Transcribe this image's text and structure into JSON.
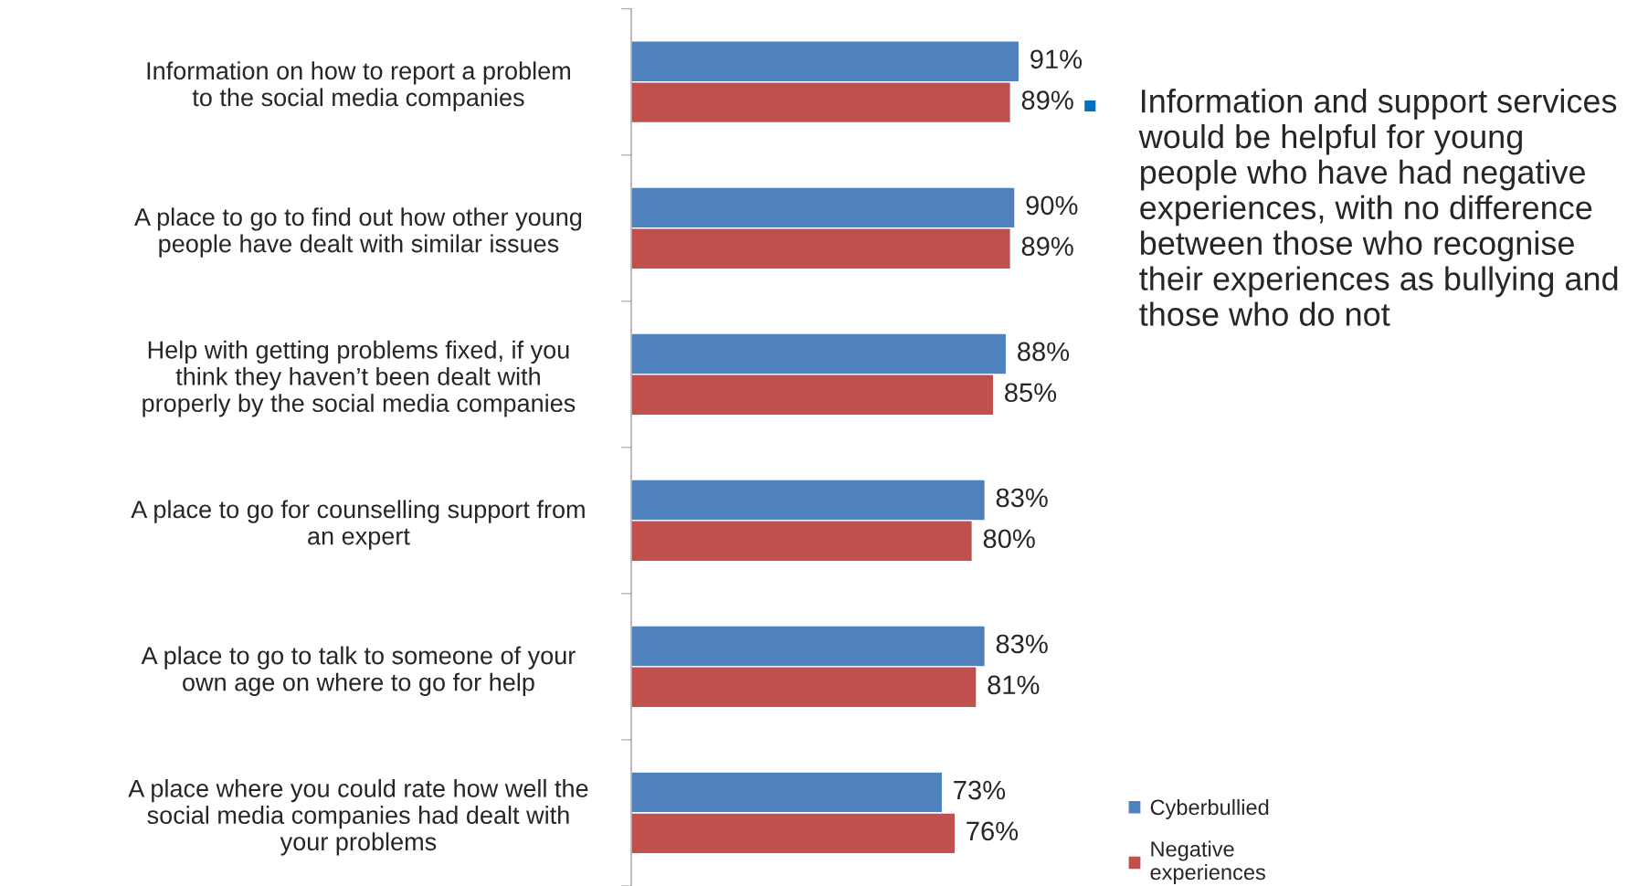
{
  "chart_data": {
    "type": "bar",
    "orientation": "horizontal",
    "categories": [
      "Information on how to report a problem\nto the social media companies",
      "A place to go to find out how other young\npeople have dealt with similar issues",
      "Help with getting problems fixed, if you\nthink they haven’t been dealt with\nproperly by the social media companies",
      "A place to go for counselling support from\nan expert",
      "A place to go to talk to someone of your\nown age on where to go for help",
      "A place where you could rate how well the\nsocial media companies had dealt with\nyour problems"
    ],
    "series": [
      {
        "name": "Cyberbullied",
        "color": "#4f81bd",
        "values": [
          91,
          90,
          88,
          83,
          83,
          73
        ],
        "value_labels": [
          "91%",
          "90%",
          "88%",
          "83%",
          "83%",
          "73%"
        ]
      },
      {
        "name": "Negative\nexperiences",
        "color": "#c0504d",
        "values": [
          89,
          89,
          85,
          80,
          81,
          76
        ],
        "value_labels": [
          "89%",
          "89%",
          "85%",
          "80%",
          "81%",
          "76%"
        ]
      }
    ],
    "legend": "bottom right",
    "annotations": [
      "Information and support services would be helpful for young people who have had negative experiences, with no difference between those who recognise their experiences as bullying and those who do not"
    ]
  }
}
